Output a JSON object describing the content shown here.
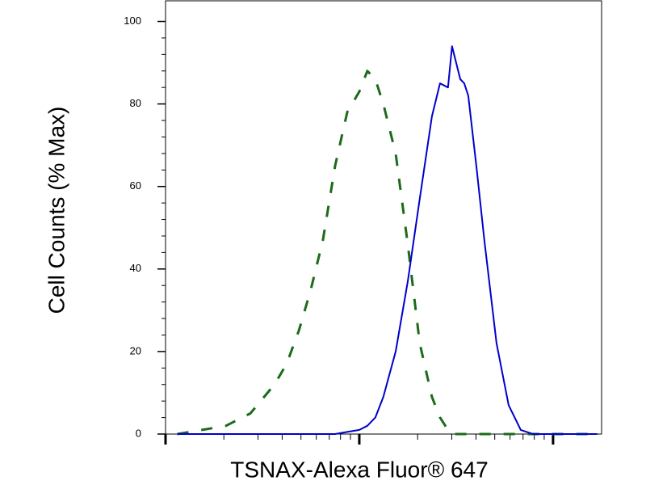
{
  "chart_data": {
    "type": "line",
    "ylabel": "Cell Counts (% Max)",
    "xlabel": "TSNAX-Alexa Fluor® 647",
    "xscale": "log",
    "xlim": [
      1,
      178
    ],
    "xticks": [
      1,
      10,
      100
    ],
    "ylim": [
      0,
      105
    ],
    "yticks": [
      0,
      20,
      40,
      60,
      80,
      100
    ],
    "x": [
      1.15,
      1.54,
      2.05,
      2.74,
      3.65,
      4.22,
      4.87,
      5.62,
      6.49,
      7.5,
      8.66,
      10,
      11,
      12.1,
      13.3,
      15.4,
      17.8,
      20.5,
      23.7,
      26.1,
      28.7,
      30.1,
      31.6,
      33.2,
      34.8,
      36.5,
      40.2,
      44.2,
      51.1,
      59,
      68.1,
      78.7,
      95.3,
      115,
      169
    ],
    "series": [
      {
        "color": "#1b6b1b",
        "dashed": true,
        "values": [
          0,
          1,
          2,
          5,
          12,
          17,
          25,
          35,
          47,
          65,
          78,
          83,
          88,
          86,
          80,
          68,
          46,
          22,
          9,
          4,
          1,
          0,
          0,
          0,
          0,
          0,
          0,
          0,
          0,
          0,
          0,
          0,
          0,
          0,
          0
        ]
      },
      {
        "color": "#0000cc",
        "dashed": false,
        "values": [
          0,
          0,
          0,
          0,
          0,
          0,
          0,
          0,
          0,
          0,
          0.5,
          1,
          2,
          4,
          9,
          20,
          37,
          57,
          77,
          85,
          84,
          94,
          90,
          86,
          85,
          82,
          65,
          47,
          22,
          7,
          1,
          0,
          0,
          0,
          0
        ]
      }
    ]
  }
}
